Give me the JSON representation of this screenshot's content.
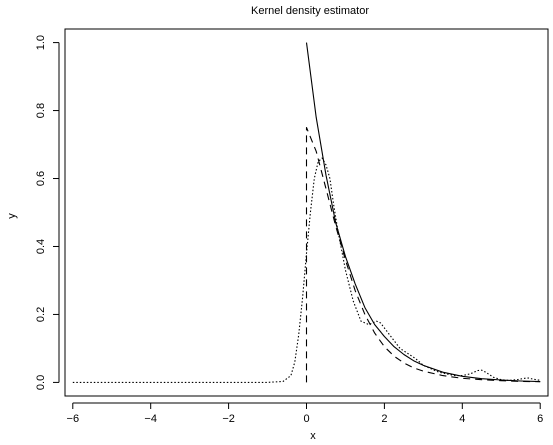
{
  "chart_data": {
    "type": "line",
    "title": "Kernel density estimator",
    "xlabel": "x",
    "ylabel": "y",
    "xlim": [
      -6.2,
      6.2
    ],
    "ylim": [
      -0.04,
      1.04
    ],
    "x_ticks": [
      -6,
      -4,
      -2,
      0,
      2,
      4,
      6
    ],
    "y_ticks": [
      0.0,
      0.2,
      0.4,
      0.6,
      0.8,
      1.0
    ],
    "x_tick_labels": [
      "−6",
      "−4",
      "−2",
      "0",
      "2",
      "4",
      "6"
    ],
    "y_tick_labels": [
      "0.0",
      "0.2",
      "0.4",
      "0.6",
      "0.8",
      "1.0"
    ],
    "grid": false,
    "series": [
      {
        "style": "solid",
        "x": [
          0,
          0.25,
          0.5,
          0.75,
          1.0,
          1.25,
          1.5,
          1.75,
          2.0,
          2.25,
          2.5,
          2.75,
          3.0,
          3.5,
          4.0,
          4.5,
          5.0,
          5.5,
          6.0
        ],
        "y": [
          1.0,
          0.78,
          0.61,
          0.47,
          0.37,
          0.29,
          0.22,
          0.17,
          0.135,
          0.105,
          0.082,
          0.064,
          0.05,
          0.03,
          0.018,
          0.011,
          0.007,
          0.004,
          0.0025
        ]
      },
      {
        "style": "dashed",
        "x": [
          0,
          0,
          0.25,
          0.5,
          0.75,
          1.0,
          1.25,
          1.5,
          1.75,
          2.0,
          2.25,
          2.5,
          2.75,
          3.0,
          3.5,
          4.0,
          4.5,
          5.0,
          5.5,
          6.0
        ],
        "y": [
          0,
          0.75,
          0.68,
          0.57,
          0.46,
          0.36,
          0.27,
          0.2,
          0.145,
          0.105,
          0.077,
          0.057,
          0.043,
          0.033,
          0.02,
          0.012,
          0.008,
          0.005,
          0.003,
          0.002
        ]
      },
      {
        "style": "dotted",
        "x": [
          -6,
          -1.0,
          -0.6,
          -0.4,
          -0.3,
          -0.2,
          -0.1,
          0,
          0.1,
          0.2,
          0.3,
          0.4,
          0.5,
          0.6,
          0.7,
          0.8,
          1.0,
          1.2,
          1.4,
          1.6,
          1.8,
          1.9,
          2.0,
          2.2,
          2.4,
          2.6,
          2.8,
          3.0,
          3.2,
          3.4,
          3.6,
          3.8,
          4.0,
          4.2,
          4.4,
          4.5,
          4.6,
          4.8,
          5.0,
          5.2,
          5.4,
          5.6,
          5.7,
          5.8,
          6.0
        ],
        "y": [
          0,
          0,
          0.003,
          0.02,
          0.06,
          0.14,
          0.25,
          0.38,
          0.5,
          0.6,
          0.65,
          0.66,
          0.64,
          0.6,
          0.52,
          0.45,
          0.33,
          0.24,
          0.18,
          0.17,
          0.18,
          0.175,
          0.16,
          0.13,
          0.1,
          0.085,
          0.07,
          0.05,
          0.04,
          0.03,
          0.025,
          0.02,
          0.02,
          0.025,
          0.035,
          0.036,
          0.03,
          0.015,
          0.008,
          0.006,
          0.008,
          0.012,
          0.013,
          0.01,
          0.006
        ]
      }
    ]
  }
}
